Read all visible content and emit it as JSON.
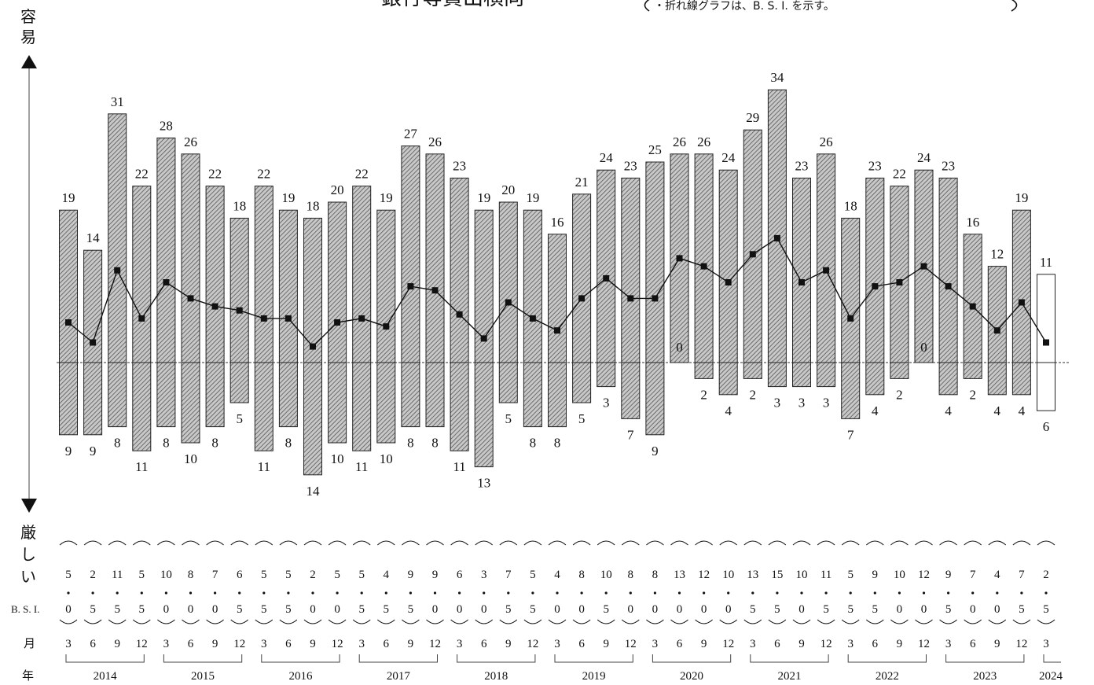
{
  "title": "銀行等貸出横向",
  "note": "・折れ線グラフは、B. S. I. を示す。",
  "axis": {
    "top_label": "容易",
    "bottom_label": "厳しい"
  },
  "row_labels": {
    "bsi": "B. S. I.",
    "month": "月",
    "year": "年"
  },
  "chart_data": {
    "type": "bar",
    "quarters": [
      {
        "year": "2014",
        "month": "3"
      },
      {
        "year": "2014",
        "month": "6"
      },
      {
        "year": "2014",
        "month": "9"
      },
      {
        "year": "2014",
        "month": "12"
      },
      {
        "year": "2015",
        "month": "3"
      },
      {
        "year": "2015",
        "month": "6"
      },
      {
        "year": "2015",
        "month": "9"
      },
      {
        "year": "2015",
        "month": "12"
      },
      {
        "year": "2016",
        "month": "3"
      },
      {
        "year": "2016",
        "month": "6"
      },
      {
        "year": "2016",
        "month": "9"
      },
      {
        "year": "2016",
        "month": "12"
      },
      {
        "year": "2017",
        "month": "3"
      },
      {
        "year": "2017",
        "month": "6"
      },
      {
        "year": "2017",
        "month": "9"
      },
      {
        "year": "2017",
        "month": "12"
      },
      {
        "year": "2018",
        "month": "3"
      },
      {
        "year": "2018",
        "month": "6"
      },
      {
        "year": "2018",
        "month": "9"
      },
      {
        "year": "2018",
        "month": "12"
      },
      {
        "year": "2019",
        "month": "3"
      },
      {
        "year": "2019",
        "month": "6"
      },
      {
        "year": "2019",
        "month": "9"
      },
      {
        "year": "2019",
        "month": "12"
      },
      {
        "year": "2020",
        "month": "3"
      },
      {
        "year": "2020",
        "month": "6"
      },
      {
        "year": "2020",
        "month": "9"
      },
      {
        "year": "2020",
        "month": "12"
      },
      {
        "year": "2021",
        "month": "3"
      },
      {
        "year": "2021",
        "month": "6"
      },
      {
        "year": "2021",
        "month": "9"
      },
      {
        "year": "2021",
        "month": "12"
      },
      {
        "year": "2022",
        "month": "3"
      },
      {
        "year": "2022",
        "month": "6"
      },
      {
        "year": "2022",
        "month": "9"
      },
      {
        "year": "2022",
        "month": "12"
      },
      {
        "year": "2023",
        "month": "3"
      },
      {
        "year": "2023",
        "month": "6"
      },
      {
        "year": "2023",
        "month": "9"
      },
      {
        "year": "2023",
        "month": "12"
      },
      {
        "year": "2024",
        "month": "3"
      }
    ],
    "easy": [
      19,
      14,
      31,
      22,
      28,
      26,
      22,
      18,
      22,
      19,
      18,
      20,
      22,
      19,
      27,
      26,
      23,
      19,
      20,
      19,
      16,
      21,
      24,
      23,
      25,
      26,
      26,
      24,
      29,
      34,
      23,
      26,
      18,
      23,
      22,
      24,
      23,
      16,
      12,
      19,
      11
    ],
    "severe": [
      9,
      9,
      8,
      11,
      8,
      10,
      8,
      5,
      11,
      8,
      14,
      10,
      11,
      10,
      8,
      8,
      11,
      13,
      5,
      8,
      8,
      5,
      3,
      7,
      9,
      0,
      2,
      4,
      2,
      3,
      3,
      3,
      7,
      4,
      2,
      0,
      4,
      2,
      4,
      4,
      6
    ],
    "bsi": [
      "5.0",
      "2.5",
      "11.5",
      "5.5",
      "10.0",
      "8.0",
      "7.0",
      "6.5",
      "5.5",
      "5.5",
      "2.0",
      "5.0",
      "5.5",
      "4.5",
      "9.5",
      "9.0",
      "6.0",
      "3.0",
      "7.5",
      "5.5",
      "4.0",
      "8.0",
      "10.5",
      "8.0",
      "8.0",
      "13.0",
      "12.0",
      "10.0",
      "13.5",
      "15.5",
      "10.0",
      "11.5",
      "5.5",
      "9.5",
      "10.0",
      "12.0",
      "9.5",
      "7.0",
      "4.0",
      "7.5",
      "2.5"
    ],
    "bsi_table": [
      [
        "5",
        "0"
      ],
      [
        "2",
        "5"
      ],
      [
        "11",
        "5"
      ],
      [
        "5",
        "5"
      ],
      [
        "10",
        "0"
      ],
      [
        "8",
        "0"
      ],
      [
        "7",
        "0"
      ],
      [
        "6",
        "5"
      ],
      [
        "5",
        "5"
      ],
      [
        "5",
        "5"
      ],
      [
        "2",
        "0"
      ],
      [
        "5",
        "0"
      ],
      [
        "5",
        "5"
      ],
      [
        "4",
        "5"
      ],
      [
        "9",
        "5"
      ],
      [
        "9",
        "0"
      ],
      [
        "6",
        "0"
      ],
      [
        "3",
        "0"
      ],
      [
        "7",
        "5"
      ],
      [
        "5",
        "5"
      ],
      [
        "4",
        "0"
      ],
      [
        "8",
        "0"
      ],
      [
        "10",
        "5"
      ],
      [
        "8",
        "0"
      ],
      [
        "8",
        "0"
      ],
      [
        "13",
        "0"
      ],
      [
        "12",
        "0"
      ],
      [
        "10",
        "0"
      ],
      [
        "13",
        "5"
      ],
      [
        "15",
        "5"
      ],
      [
        "10",
        "0"
      ],
      [
        "11",
        "5"
      ],
      [
        "5",
        "5"
      ],
      [
        "9",
        "5"
      ],
      [
        "10",
        "0"
      ],
      [
        "12",
        "0"
      ],
      [
        "9",
        "5"
      ],
      [
        "7",
        "0"
      ],
      [
        "4",
        "0"
      ],
      [
        "7",
        "5"
      ],
      [
        "2",
        "5"
      ]
    ],
    "years": [
      "2014",
      "2015",
      "2016",
      "2017",
      "2018",
      "2019",
      "2020",
      "2021",
      "2022",
      "2023",
      "2024"
    ],
    "forecast_index": 40,
    "colors": {
      "bar_fill": "#bdbdbd",
      "hatch": "#555555",
      "line": "#111111",
      "forecast_fill": "#ffffff"
    }
  }
}
